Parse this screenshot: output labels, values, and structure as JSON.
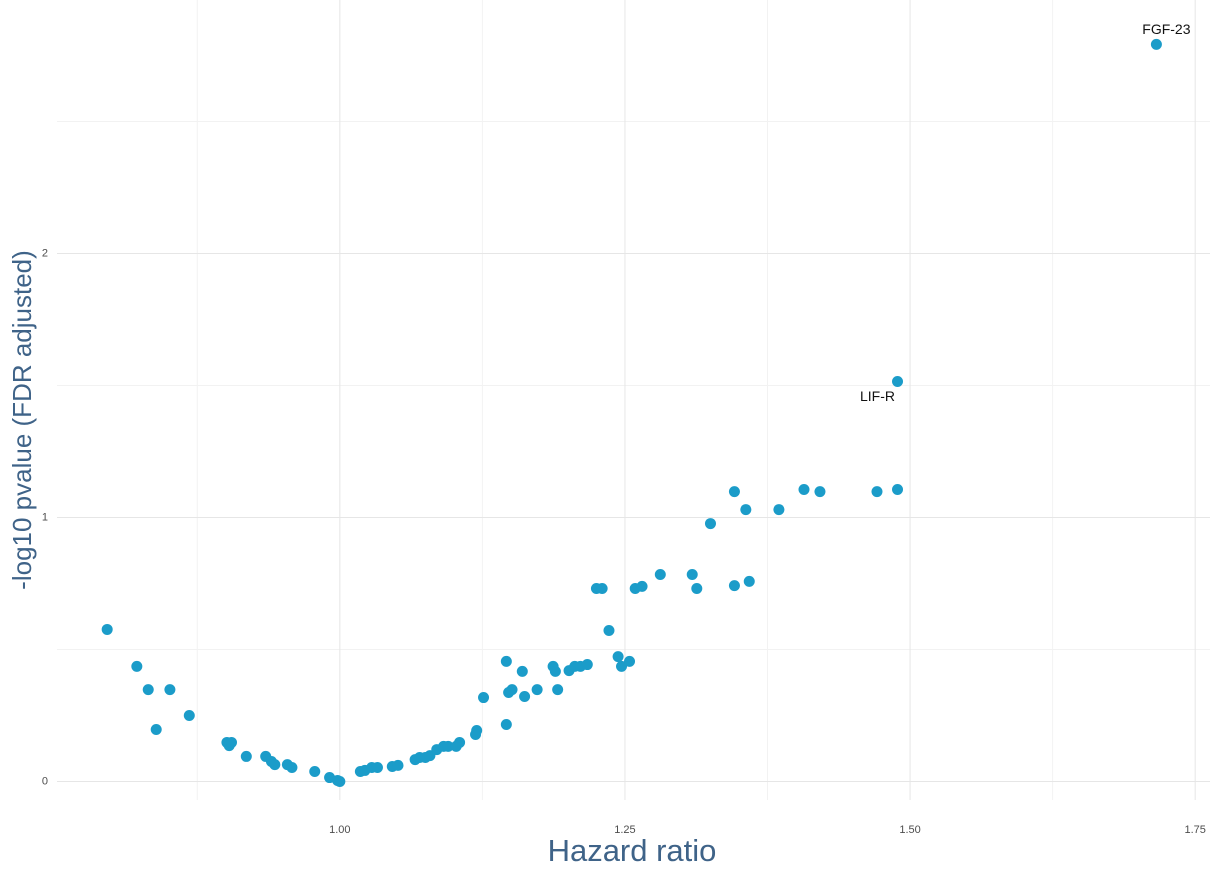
{
  "chart_data": {
    "type": "scatter",
    "x_label": "Hazard ratio",
    "y_label": "-log10 pvalue (FDR adjusted)",
    "color": "#1b9cc9",
    "grid": true,
    "xlim": [
      0.752,
      1.763
    ],
    "ylim": [
      -0.07,
      2.96
    ],
    "xticks": [
      {
        "value": 1,
        "label": "1.00"
      },
      {
        "value": 1.25,
        "label": "1.25"
      },
      {
        "value": 1.5,
        "label": "1.50"
      },
      {
        "value": 1.75,
        "label": "1.75"
      }
    ],
    "yticks": [
      0,
      1,
      2
    ],
    "x": [
      0.796,
      0.822,
      0.832,
      0.851,
      0.839,
      0.868,
      0.901,
      0.903,
      0.905,
      0.918,
      0.935,
      0.94,
      0.943,
      0.954,
      0.958,
      0.978,
      0.991,
      1.0,
      0.998,
      1.018,
      1.022,
      1.028,
      1.033,
      1.046,
      1.051,
      1.066,
      1.07,
      1.075,
      1.079,
      1.085,
      1.091,
      1.095,
      1.102,
      1.105,
      1.12,
      1.119,
      1.126,
      1.146,
      1.146,
      1.148,
      1.151,
      1.16,
      1.162,
      1.173,
      1.187,
      1.189,
      1.191,
      1.201,
      1.206,
      1.211,
      1.217,
      1.225,
      1.23,
      1.236,
      1.244,
      1.247,
      1.254,
      1.259,
      1.265,
      1.281,
      1.309,
      1.313,
      1.325,
      1.346,
      1.346,
      1.356,
      1.359,
      1.385,
      1.407,
      1.421,
      1.471,
      1.489,
      1.489,
      1.716
    ],
    "values": [
      0.576,
      0.436,
      0.348,
      0.348,
      0.197,
      0.25,
      0.148,
      0.136,
      0.148,
      0.095,
      0.095,
      0.076,
      0.064,
      0.064,
      0.053,
      0.038,
      0.015,
      0.0,
      0.004,
      0.038,
      0.042,
      0.053,
      0.053,
      0.057,
      0.061,
      0.083,
      0.091,
      0.091,
      0.098,
      0.121,
      0.133,
      0.133,
      0.133,
      0.148,
      0.193,
      0.178,
      0.318,
      0.455,
      0.216,
      0.337,
      0.348,
      0.417,
      0.322,
      0.348,
      0.436,
      0.417,
      0.348,
      0.42,
      0.436,
      0.436,
      0.443,
      0.731,
      0.731,
      0.572,
      0.473,
      0.436,
      0.455,
      0.731,
      0.739,
      0.784,
      0.784,
      0.731,
      0.977,
      1.098,
      0.742,
      1.03,
      0.758,
      1.03,
      1.106,
      1.098,
      1.098,
      1.106,
      1.515,
      2.792
    ],
    "point_labels": [
      null,
      null,
      null,
      null,
      null,
      null,
      null,
      null,
      null,
      null,
      null,
      null,
      null,
      null,
      null,
      null,
      null,
      null,
      null,
      null,
      null,
      null,
      null,
      null,
      null,
      null,
      null,
      null,
      null,
      null,
      null,
      null,
      null,
      null,
      null,
      null,
      null,
      null,
      null,
      null,
      null,
      null,
      null,
      null,
      null,
      null,
      null,
      null,
      null,
      null,
      null,
      null,
      null,
      null,
      null,
      null,
      null,
      null,
      null,
      null,
      null,
      null,
      null,
      null,
      null,
      null,
      null,
      null,
      null,
      null,
      null,
      null,
      "LIF-R",
      "FGF-23"
    ]
  }
}
